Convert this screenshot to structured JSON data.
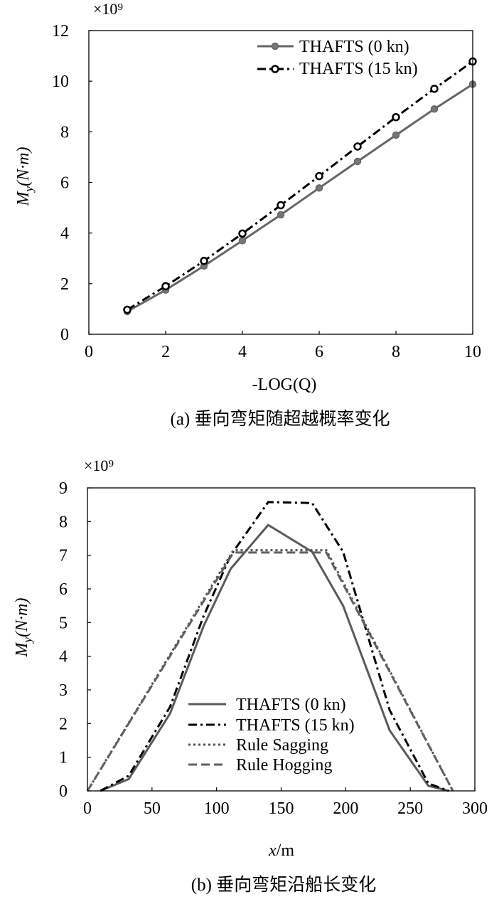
{
  "chart_data": [
    {
      "type": "line",
      "caption": "(a) 垂向弯矩随超越概率变化",
      "multiplier": "×10⁹",
      "xlabel": "-LOG(Q)",
      "ylabel": {
        "main": "M",
        "sub": "y",
        "unit": "(N·m)"
      },
      "xlim": [
        0,
        10
      ],
      "ylim": [
        0,
        12
      ],
      "xticks": [
        0,
        2,
        4,
        6,
        8,
        10
      ],
      "yticks": [
        0,
        2,
        4,
        6,
        8,
        10,
        12
      ],
      "grid": false,
      "legend_position": "top-right",
      "series": [
        {
          "name": "THAFTS (0 kn)",
          "color": "#666666",
          "line_style": "solid",
          "marker": "filled-circle",
          "x": [
            1,
            2,
            3,
            4,
            5,
            6,
            7,
            8,
            9,
            10
          ],
          "y": [
            0.9,
            1.75,
            2.7,
            3.7,
            4.72,
            5.78,
            6.83,
            7.87,
            8.9,
            9.88
          ]
        },
        {
          "name": "THAFTS (15 kn)",
          "color": "#000000",
          "line_style": "dash-dot",
          "marker": "open-circle",
          "x": [
            1,
            2,
            3,
            4,
            5,
            6,
            7,
            8,
            9,
            10
          ],
          "y": [
            0.97,
            1.9,
            2.9,
            3.98,
            5.1,
            6.25,
            7.42,
            8.58,
            9.7,
            10.78
          ]
        }
      ]
    },
    {
      "type": "line",
      "caption": "(b) 垂向弯矩沿船长变化",
      "multiplier": "×10⁹",
      "xlabel": {
        "main": "x",
        "unit": "/m"
      },
      "ylabel": {
        "main": "M",
        "sub": "y",
        "unit": "(N·m)"
      },
      "xlim": [
        0,
        300
      ],
      "ylim": [
        0,
        9
      ],
      "xticks": [
        0,
        50,
        100,
        150,
        200,
        250,
        300
      ],
      "yticks": [
        0,
        1,
        2,
        3,
        4,
        5,
        6,
        7,
        8,
        9
      ],
      "grid": false,
      "legend_position": "bottom-center",
      "series": [
        {
          "name": "THAFTS (0 kn)",
          "color": "#5a5a5a",
          "line_style": "solid",
          "x": [
            10,
            32,
            64,
            90,
            111,
            140,
            174,
            198,
            234,
            264,
            280
          ],
          "y": [
            0,
            0.35,
            2.3,
            4.9,
            6.6,
            7.9,
            7.1,
            5.5,
            1.8,
            0.15,
            0
          ]
        },
        {
          "name": "THAFTS (15 kn)",
          "color": "#000000",
          "line_style": "dash-dot",
          "x": [
            10,
            32,
            64,
            90,
            111,
            140,
            174,
            198,
            234,
            264,
            280
          ],
          "y": [
            0,
            0.45,
            2.5,
            5.2,
            7.0,
            8.58,
            8.55,
            7.1,
            2.4,
            0.22,
            0
          ]
        },
        {
          "name": "Rule Sagging",
          "color": "#505050",
          "line_style": "dotted",
          "x": [
            0,
            113,
            185,
            283
          ],
          "y": [
            0,
            7.15,
            7.15,
            0
          ]
        },
        {
          "name": "Rule Hogging",
          "color": "#606060",
          "line_style": "dashed",
          "x": [
            0,
            113,
            185,
            283
          ],
          "y": [
            0,
            7.08,
            7.08,
            0
          ]
        }
      ]
    }
  ]
}
